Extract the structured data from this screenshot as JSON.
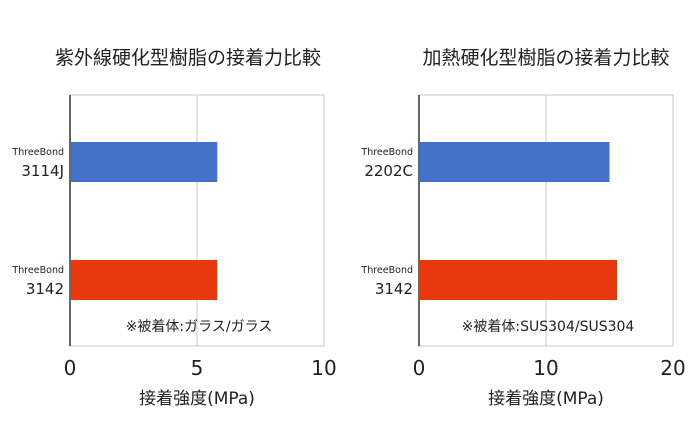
{
  "chart_data": [
    {
      "type": "bar",
      "orientation": "horizontal",
      "title": "紫外線硬化型樹脂の接着力比較",
      "xlabel": "接着強度(MPa)",
      "ylabel": "",
      "xlim": [
        0,
        10
      ],
      "x_ticks": [
        0,
        5,
        10
      ],
      "grid": true,
      "categories": [
        {
          "brand": "ThreeBond",
          "code": "3114J"
        },
        {
          "brand": "ThreeBond",
          "code": "3142"
        }
      ],
      "values": [
        5.8,
        5.8
      ],
      "bar_colors": [
        "#4472c8",
        "#e8380d"
      ],
      "annotation": "※被着体:ガラス/ガラス"
    },
    {
      "type": "bar",
      "orientation": "horizontal",
      "title": "加熱硬化型樹脂の接着力比較",
      "xlabel": "接着強度(MPa)",
      "ylabel": "",
      "xlim": [
        0,
        20
      ],
      "x_ticks": [
        0,
        10,
        20
      ],
      "grid": true,
      "categories": [
        {
          "brand": "ThreeBond",
          "code": "2202C"
        },
        {
          "brand": "ThreeBond",
          "code": "3142"
        }
      ],
      "values": [
        15.0,
        15.6
      ],
      "bar_colors": [
        "#4472c8",
        "#e8380d"
      ],
      "annotation": "※被着体:SUS304/SUS304"
    }
  ]
}
